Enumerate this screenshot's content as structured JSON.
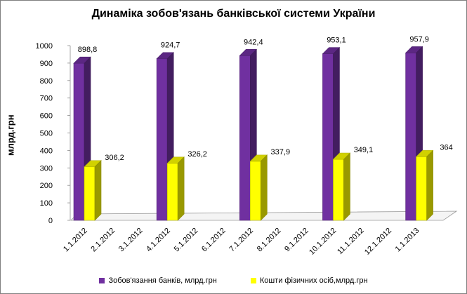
{
  "chart_data": {
    "type": "bar",
    "title": "Динаміка зобов'язань банківської системи України",
    "ylabel": "млрд.грн",
    "xlabel": "",
    "ylim": [
      0,
      1000
    ],
    "yticks": [
      0,
      100,
      200,
      300,
      400,
      500,
      600,
      700,
      800,
      900,
      1000
    ],
    "grid": false,
    "legend_position": "bottom",
    "categories": [
      "1.1.2012",
      "2.1.2012",
      "3.1.2012",
      "4.1.2012",
      "5.1.2012",
      "6.1.2012",
      "7.1.2012",
      "8.1.2012",
      "9.1.2012",
      "10.1.2012",
      "11.1.2012",
      "12.1.2012",
      "1.1.2013"
    ],
    "series": [
      {
        "name": "Зобов'язання банків, млрд.грн",
        "color": "#7030A0",
        "values": [
          898.8,
          null,
          null,
          924.7,
          null,
          null,
          942.4,
          null,
          null,
          953.1,
          null,
          null,
          957.9
        ],
        "labels": [
          "898,8",
          null,
          null,
          "924,7",
          null,
          null,
          "942,4",
          null,
          null,
          "953,1",
          null,
          null,
          "957,9"
        ]
      },
      {
        "name": "Кошти фізичних осіб,млрд.грн",
        "color": "#FFFF00",
        "values": [
          306.2,
          null,
          null,
          326.2,
          null,
          null,
          337.9,
          null,
          null,
          349.1,
          null,
          null,
          364
        ],
        "labels": [
          "306,2",
          null,
          null,
          "326,2",
          null,
          null,
          "337,9",
          null,
          null,
          "349,1",
          null,
          null,
          "364"
        ]
      }
    ]
  }
}
